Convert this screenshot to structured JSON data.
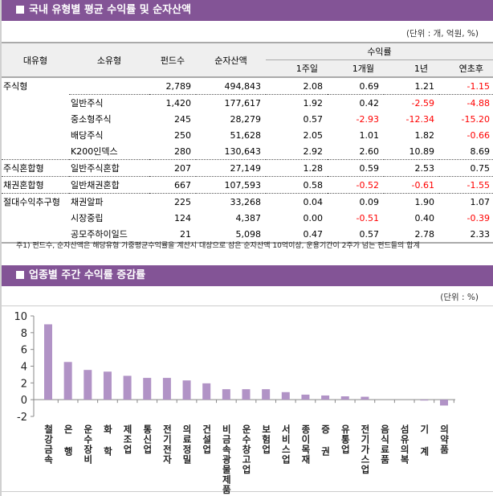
{
  "section1": {
    "title": "국내 유형별 평균 수익률 및 순자산액",
    "unit": "(단위 : 개, 억원, %)",
    "headers": {
      "major": "대유형",
      "minor": "소유형",
      "funds": "펀드수",
      "assets": "순자산액",
      "returns": "수익률",
      "w1": "1주일",
      "m1": "1개월",
      "y1": "1년",
      "ytd": "연초후"
    },
    "rows": [
      {
        "major": "주식형",
        "minor": "",
        "funds": "2,789",
        "assets": "494,843",
        "w1": "2.08",
        "m1": "0.69",
        "y1": "1.21",
        "ytd": "-1.15"
      },
      {
        "major": "",
        "minor": "일반주식",
        "funds": "1,420",
        "assets": "177,617",
        "w1": "1.92",
        "m1": "0.42",
        "y1": "-2.59",
        "ytd": "-4.88"
      },
      {
        "major": "",
        "minor": "중소형주식",
        "funds": "245",
        "assets": "28,279",
        "w1": "0.57",
        "m1": "-2.93",
        "y1": "-12.34",
        "ytd": "-15.20"
      },
      {
        "major": "",
        "minor": "배당주식",
        "funds": "250",
        "assets": "51,628",
        "w1": "2.05",
        "m1": "1.01",
        "y1": "1.82",
        "ytd": "-0.66"
      },
      {
        "major": "",
        "minor": "K200인덱스",
        "funds": "280",
        "assets": "130,643",
        "w1": "2.92",
        "m1": "2.60",
        "y1": "10.89",
        "ytd": "8.69"
      },
      {
        "major": "주식혼합형",
        "minor": "일반주식혼합",
        "funds": "207",
        "assets": "27,149",
        "w1": "1.28",
        "m1": "0.59",
        "y1": "2.53",
        "ytd": "0.75"
      },
      {
        "major": "채권혼합형",
        "minor": "일반채권혼합",
        "funds": "667",
        "assets": "107,593",
        "w1": "0.58",
        "m1": "-0.52",
        "y1": "-0.61",
        "ytd": "-1.55"
      },
      {
        "major": "절대수익추구형",
        "minor": "채권알파",
        "funds": "225",
        "assets": "33,268",
        "w1": "0.04",
        "m1": "0.09",
        "y1": "1.90",
        "ytd": "1.07"
      },
      {
        "major": "",
        "minor": "시장중립",
        "funds": "124",
        "assets": "4,387",
        "w1": "0.00",
        "m1": "-0.51",
        "y1": "0.40",
        "ytd": "-0.39"
      },
      {
        "major": "",
        "minor": "공모주하이일드",
        "funds": "21",
        "assets": "5,098",
        "w1": "0.47",
        "m1": "0.57",
        "y1": "2.78",
        "ytd": "2.33"
      }
    ],
    "note": "주1) 펀드수, 순자산액은 해당유형 가중평균수익률을 계산시 대상으로 삼은 순자산액 10억이상, 운용기간이 2주가 넘는 펀드들의 합계"
  },
  "section2": {
    "title": "업종별 주간 수익률 증감률",
    "unit": "(단위 : %)"
  },
  "colors": {
    "header": "#835496",
    "bar": "#b193c6",
    "negative": "#ff0000"
  },
  "chart_data": {
    "type": "bar",
    "categories": [
      "철강금속",
      "은 행",
      "운수장비",
      "화 학",
      "제조업",
      "통신업",
      "전기전자",
      "의료정밀",
      "건설업",
      "비금속광물제품",
      "운수창고업",
      "보험업",
      "서비스업",
      "종이목재",
      "증 권",
      "유통업",
      "전기가스업",
      "음식료품",
      "섬유의복",
      "기 계",
      "의약품"
    ],
    "values": [
      9.0,
      4.5,
      3.55,
      3.35,
      2.85,
      2.6,
      2.6,
      2.3,
      1.95,
      1.25,
      1.25,
      1.25,
      0.9,
      0.6,
      0.5,
      0.4,
      0.35,
      0.0,
      0.0,
      -0.1,
      -0.7
    ],
    "yticks": [
      "10",
      "8",
      "6",
      "4",
      "2",
      "0",
      "-2"
    ],
    "ylim": [
      -2,
      10
    ],
    "grid": false
  }
}
